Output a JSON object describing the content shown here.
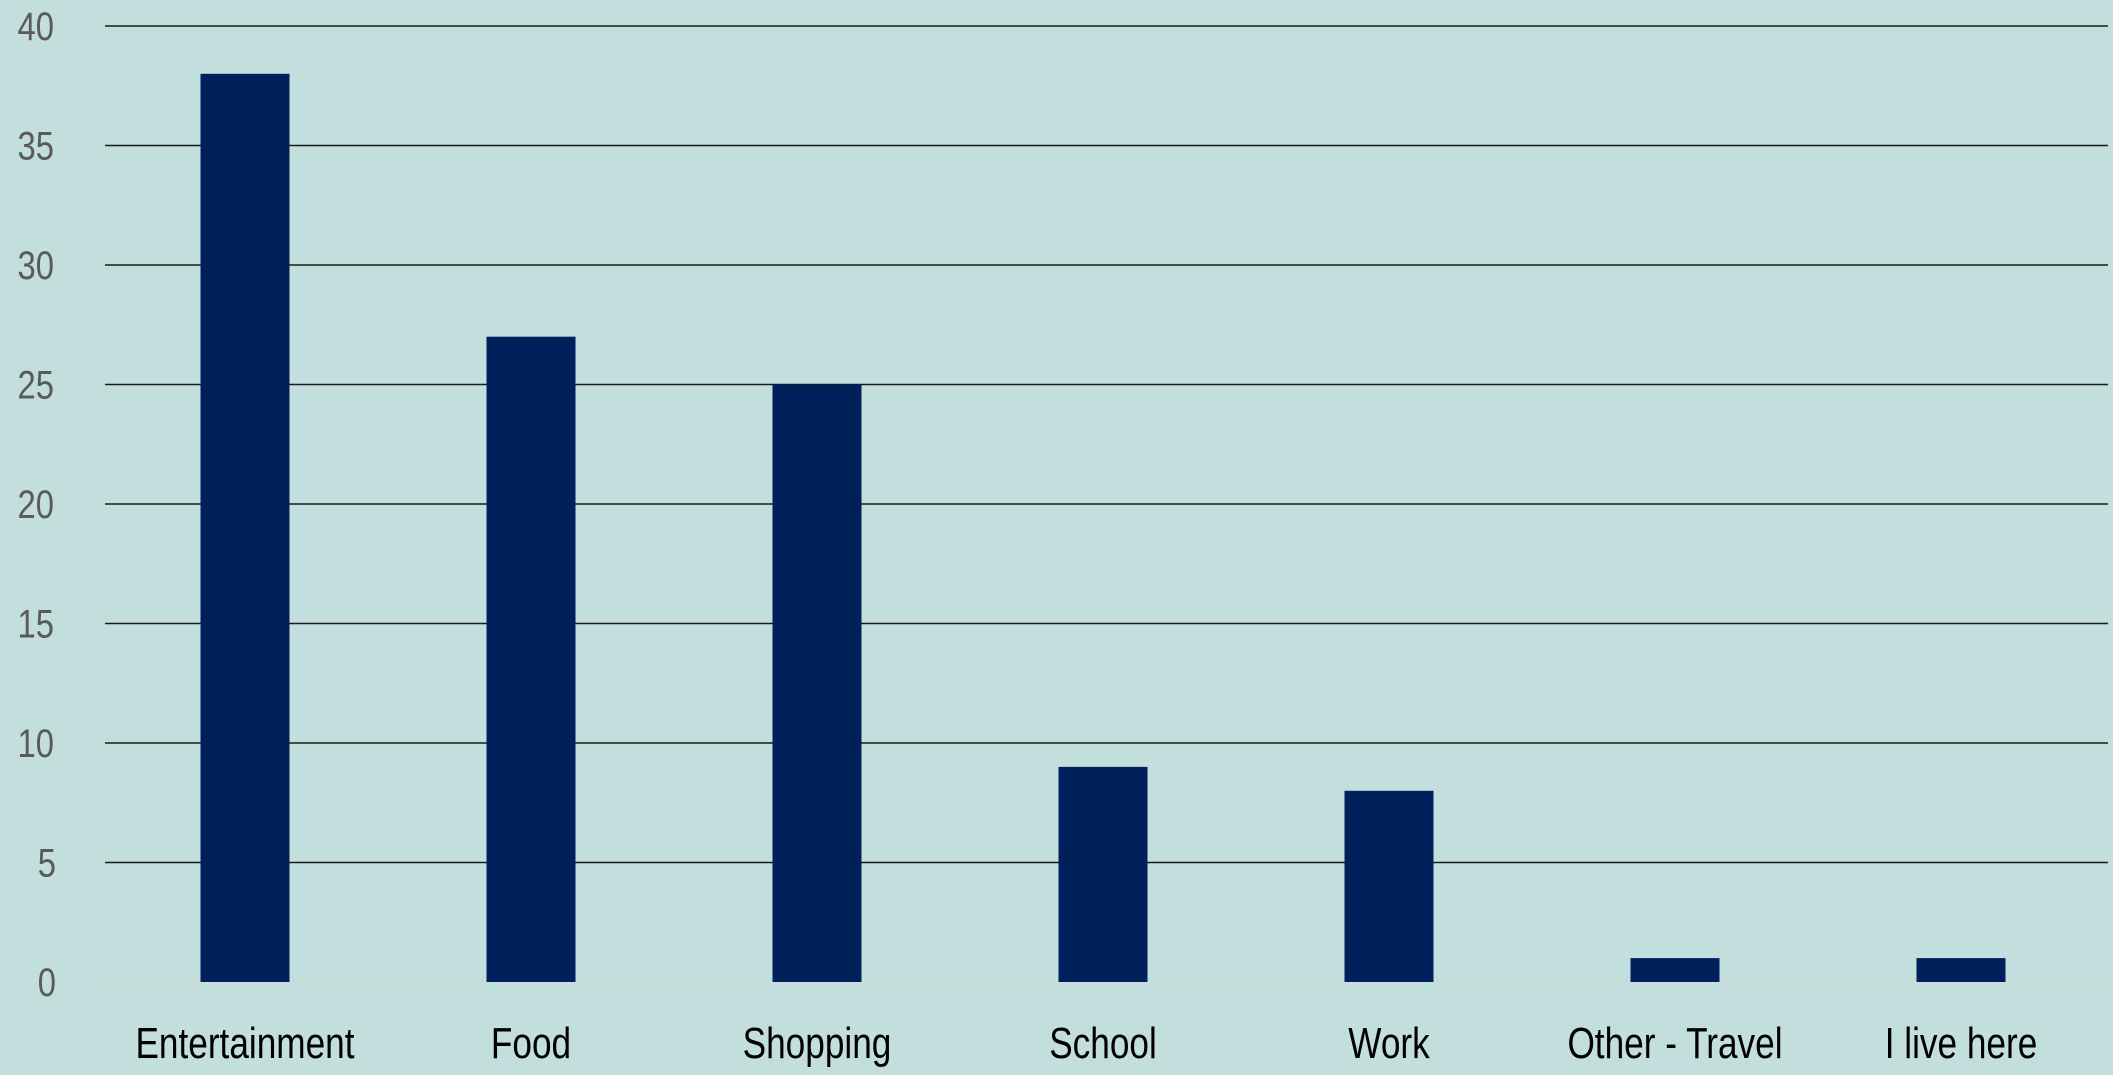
{
  "chart_data": {
    "type": "bar",
    "categories": [
      "Entertainment",
      "Food",
      "Shopping",
      "School",
      "Work",
      "Other - Travel",
      "I live here"
    ],
    "values": [
      38,
      27,
      25,
      9,
      8,
      1,
      1
    ],
    "title": "",
    "xlabel": "",
    "ylabel": "",
    "ylim": [
      0,
      40
    ],
    "yticks": [
      0,
      5,
      10,
      15,
      20,
      25,
      30,
      35,
      40
    ],
    "grid": true,
    "legend": "none",
    "colors": {
      "background": "#c2dedd",
      "bar": "#00205b",
      "gridline": "#1a1a1a",
      "y_tick_text": "#5a5a5a",
      "x_tick_text": "#000000"
    }
  }
}
